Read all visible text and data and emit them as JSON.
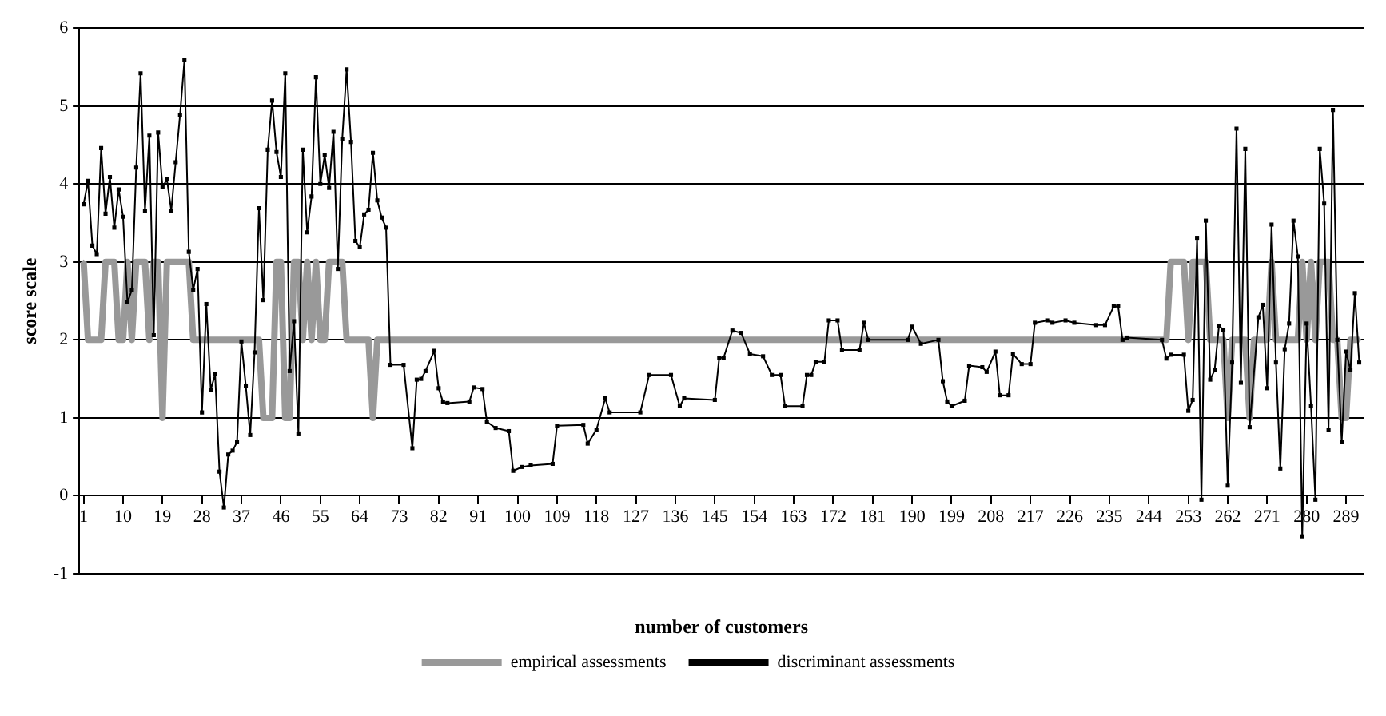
{
  "chart_data": {
    "type": "line",
    "xlabel": "number of customers",
    "ylabel": "score scale",
    "xlim": [
      0,
      293
    ],
    "xticks": [
      1,
      10,
      19,
      28,
      37,
      46,
      55,
      64,
      73,
      82,
      91,
      100,
      109,
      118,
      127,
      136,
      145,
      154,
      163,
      172,
      181,
      190,
      199,
      208,
      217,
      226,
      235,
      244,
      253,
      262,
      271,
      280,
      289
    ],
    "ylim": [
      -1,
      6
    ],
    "yticks": [
      -1,
      0,
      1,
      2,
      3,
      4,
      5,
      6
    ],
    "grid": "y",
    "legend": "bottom",
    "series": [
      {
        "name": "empirical assessments",
        "color": "#999999",
        "marker": "diamond",
        "x": [
          1,
          2,
          5,
          6,
          8,
          9,
          10,
          11,
          12,
          13,
          15,
          16,
          17,
          18,
          19,
          20,
          25,
          26,
          41,
          42,
          44,
          45,
          46,
          47,
          48,
          49,
          50,
          51,
          52,
          53,
          54,
          55,
          56,
          57,
          60,
          61,
          66,
          67,
          68,
          248,
          249,
          252,
          253,
          254,
          257,
          258,
          261,
          262,
          263,
          266,
          267,
          268,
          271,
          272,
          273,
          278,
          279,
          280,
          281,
          282,
          283,
          285,
          286,
          287,
          288,
          289,
          290,
          292
        ],
        "values": [
          3,
          2,
          2,
          3,
          3,
          2,
          2,
          3,
          2,
          3,
          3,
          2,
          3,
          3,
          1,
          3,
          3,
          2,
          2,
          1,
          1,
          3,
          3,
          1,
          1,
          3,
          3,
          2,
          3,
          2,
          3,
          2,
          2,
          3,
          3,
          2,
          2,
          1,
          2,
          2,
          3,
          3,
          2,
          3,
          3,
          2,
          2,
          1,
          2,
          2,
          1,
          2,
          2,
          3,
          2,
          2,
          3,
          2,
          3,
          2,
          3,
          3,
          2,
          2,
          1,
          1,
          2,
          2
        ]
      },
      {
        "name": "discriminant assessments",
        "color": "#000000",
        "marker": "square",
        "x": [
          1,
          2,
          3,
          4,
          5,
          6,
          7,
          8,
          9,
          10,
          11,
          12,
          13,
          14,
          15,
          16,
          17,
          18,
          19,
          20,
          21,
          22,
          23,
          24,
          25,
          26,
          27,
          28,
          29,
          30,
          31,
          32,
          33,
          34,
          35,
          36,
          37,
          38,
          39,
          40,
          41,
          42,
          43,
          44,
          45,
          46,
          47,
          48,
          49,
          50,
          51,
          52,
          53,
          54,
          55,
          56,
          57,
          58,
          59,
          60,
          61,
          62,
          63,
          64,
          65,
          66,
          67,
          68,
          69,
          70,
          71,
          74,
          76,
          77,
          78,
          79,
          81,
          82,
          83,
          84,
          89,
          90,
          92,
          93,
          95,
          98,
          99,
          101,
          103,
          108,
          109,
          115,
          116,
          118,
          120,
          121,
          128,
          130,
          135,
          137,
          138,
          145,
          146,
          147,
          149,
          151,
          153,
          156,
          158,
          160,
          161,
          165,
          166,
          167,
          168,
          170,
          171,
          173,
          174,
          178,
          179,
          180,
          189,
          190,
          192,
          196,
          197,
          198,
          199,
          202,
          203,
          206,
          207,
          209,
          210,
          212,
          213,
          215,
          217,
          218,
          221,
          222,
          225,
          227,
          232,
          234,
          236,
          237,
          238,
          239,
          247,
          248,
          249,
          252,
          253,
          254,
          255,
          256,
          257,
          258,
          259,
          260,
          261,
          262,
          263,
          264,
          265,
          266,
          267,
          269,
          270,
          271,
          272,
          273,
          274,
          275,
          276,
          277,
          278,
          279,
          280,
          281,
          282,
          283,
          284,
          285,
          286,
          287,
          288,
          289,
          290,
          291,
          292
        ],
        "values": [
          3.74,
          4.04,
          3.21,
          3.1,
          4.46,
          3.62,
          4.09,
          3.44,
          3.93,
          3.58,
          2.48,
          2.64,
          4.21,
          5.42,
          3.66,
          4.62,
          2.06,
          4.66,
          3.96,
          4.06,
          3.66,
          4.28,
          4.89,
          5.59,
          3.13,
          2.64,
          2.91,
          1.07,
          2.46,
          1.36,
          1.56,
          0.31,
          -0.15,
          0.53,
          0.58,
          0.69,
          1.98,
          1.41,
          0.78,
          1.84,
          3.69,
          2.51,
          4.44,
          5.07,
          4.41,
          4.09,
          5.42,
          1.6,
          2.24,
          0.8,
          4.44,
          3.38,
          3.84,
          5.37,
          4.0,
          4.37,
          3.95,
          4.67,
          2.91,
          4.58,
          5.47,
          4.54,
          3.27,
          3.19,
          3.61,
          3.67,
          4.4,
          3.79,
          3.57,
          3.44,
          1.68,
          1.68,
          0.61,
          1.49,
          1.5,
          1.6,
          1.86,
          1.38,
          1.2,
          1.19,
          1.21,
          1.39,
          1.37,
          0.95,
          0.87,
          0.83,
          0.32,
          0.37,
          0.39,
          0.41,
          0.9,
          0.91,
          0.67,
          0.85,
          1.25,
          1.07,
          1.07,
          1.55,
          1.55,
          1.15,
          1.25,
          1.23,
          1.77,
          1.77,
          2.12,
          2.09,
          1.82,
          1.79,
          1.55,
          1.55,
          1.15,
          1.15,
          1.55,
          1.55,
          1.72,
          1.72,
          2.25,
          2.25,
          1.87,
          1.87,
          2.22,
          2.0,
          2.0,
          2.17,
          1.95,
          2.0,
          1.47,
          1.21,
          1.15,
          1.22,
          1.67,
          1.65,
          1.59,
          1.85,
          1.29,
          1.29,
          1.82,
          1.69,
          1.69,
          2.22,
          2.25,
          2.22,
          2.25,
          2.22,
          2.19,
          2.19,
          2.43,
          2.43,
          2.0,
          2.03,
          2.0,
          1.76,
          1.81,
          1.81,
          1.09,
          1.23,
          3.31,
          -0.05,
          3.53,
          1.49,
          1.61,
          2.18,
          2.13,
          0.13,
          1.71,
          4.71,
          1.45,
          4.45,
          0.88,
          2.29,
          2.45,
          1.38,
          3.48,
          1.71,
          0.35,
          1.88,
          2.21,
          3.53,
          3.07,
          -0.52,
          2.21,
          1.15,
          -0.05,
          4.45,
          3.75,
          0.85,
          4.95,
          2.0,
          0.69,
          1.85,
          1.61,
          2.6,
          1.71
        ]
      }
    ]
  }
}
